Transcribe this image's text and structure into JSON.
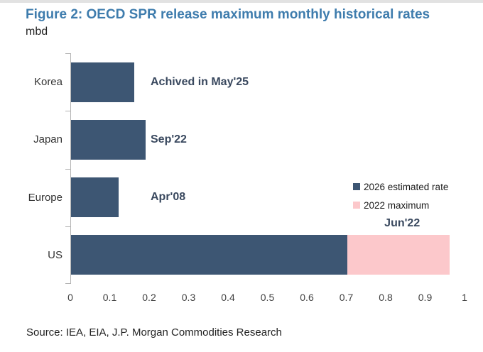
{
  "figure": {
    "title": "Figure 2: OECD SPR release maximum monthly historical rates",
    "unit_label": "mbd",
    "source": "Source: IEA, EIA, J.P. Morgan Commodities Research"
  },
  "colors": {
    "title": "#3e7cad",
    "navy": "#3d5673",
    "pink": "#fcc8cb",
    "annotation": "#39485e",
    "axis_line": "#b3b3b3",
    "tick_text": "#404040",
    "category_text": "#333333",
    "legend_text": "#1a1a1a",
    "source_text": "#222222"
  },
  "chart_data": {
    "type": "bar",
    "orientation": "horizontal",
    "title": "Figure 2: OECD SPR release maximum monthly historical rates",
    "unit": "mbd",
    "categories": [
      "Korea",
      "Japan",
      "Europe",
      "US"
    ],
    "series": [
      {
        "name": "2026 estimated rate",
        "color": "#3d5673",
        "values": [
          0.16,
          0.19,
          0.12,
          0.7
        ]
      },
      {
        "name": "2022 maximum",
        "color": "#fcc8cb",
        "values": [
          null,
          null,
          null,
          0.96
        ]
      }
    ],
    "annotations": [
      {
        "category": "Korea",
        "text": "Achived in May'25",
        "placement": "right-of-bar"
      },
      {
        "category": "Japan",
        "text": "Sep'22",
        "placement": "right-of-bar"
      },
      {
        "category": "Europe",
        "text": "Apr'08",
        "placement": "right-of-bar"
      },
      {
        "category": "US",
        "text": "Jun'22",
        "placement": "above-bar",
        "x": 0.84
      }
    ],
    "xlim": [
      0,
      1
    ],
    "xticks": [
      "0",
      "0.1",
      "0.2",
      "0.3",
      "0.4",
      "0.5",
      "0.6",
      "0.7",
      "0.8",
      "0.9",
      "1"
    ],
    "grid": false,
    "legend_position": "middle-right"
  }
}
